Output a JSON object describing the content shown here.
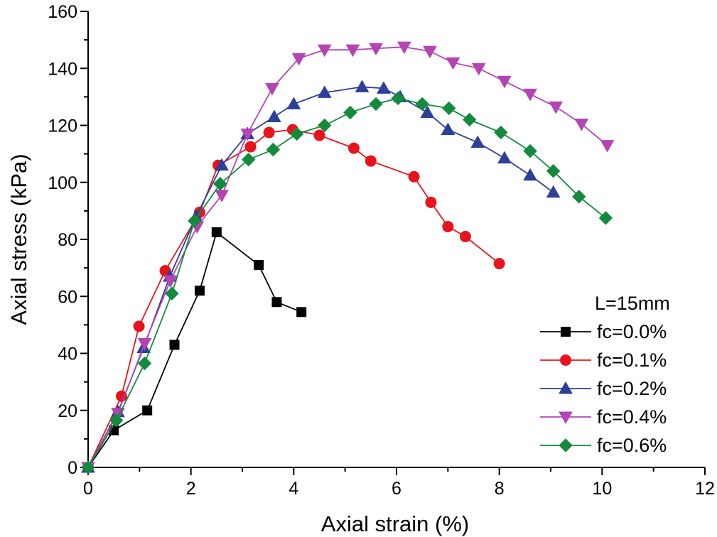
{
  "chart_data": {
    "type": "line",
    "title": "",
    "xlabel": "Axial strain (%)",
    "ylabel": "Axial stress (kPa)",
    "xlim": [
      0,
      12
    ],
    "ylim": [
      0,
      160
    ],
    "xticks": [
      0,
      2,
      4,
      6,
      8,
      10,
      12
    ],
    "yticks": [
      0,
      20,
      40,
      60,
      80,
      100,
      120,
      140,
      160
    ],
    "grid": false,
    "legend_title": "L=15mm",
    "legend_position": "bottom-right",
    "series": [
      {
        "name": "fc=0.0%",
        "color": "#000000",
        "marker": "square",
        "x": [
          0,
          0.5,
          1.15,
          1.68,
          2.17,
          2.5,
          3.32,
          3.67,
          4.15
        ],
        "y": [
          0,
          13,
          20,
          43,
          62,
          82.5,
          71,
          58,
          54.5
        ]
      },
      {
        "name": "fc=0.1%",
        "color": "#e8141c",
        "marker": "circle",
        "x": [
          0,
          0.65,
          0.99,
          1.5,
          2.17,
          2.53,
          3.16,
          3.52,
          3.98,
          4.5,
          5.17,
          5.5,
          6.34,
          6.67,
          7.0,
          7.34,
          8.0
        ],
        "y": [
          0,
          25,
          49.5,
          69,
          89.5,
          106,
          112.5,
          117.5,
          118.5,
          116.5,
          112,
          107.5,
          102,
          93,
          84.5,
          81,
          71.5
        ]
      },
      {
        "name": "fc=0.2%",
        "color": "#2c3f99",
        "marker": "triangle-up",
        "x": [
          0,
          0.58,
          1.08,
          1.59,
          2.1,
          2.6,
          3.1,
          3.62,
          4.0,
          4.6,
          5.33,
          5.75,
          6.07,
          6.6,
          7.0,
          7.58,
          8.1,
          8.6,
          9.05
        ],
        "y": [
          0,
          19.5,
          42,
          67,
          88,
          106,
          117,
          123,
          127.5,
          131.5,
          133.5,
          133,
          130,
          124.5,
          118.5,
          114,
          108.5,
          102.5,
          96.5
        ]
      },
      {
        "name": "fc=0.4%",
        "color": "#b444b4",
        "marker": "triangle-down",
        "x": [
          0,
          0.58,
          1.1,
          1.6,
          2.12,
          2.6,
          3.1,
          3.58,
          4.1,
          4.6,
          5.15,
          5.6,
          6.15,
          6.65,
          7.1,
          7.6,
          8.1,
          8.6,
          9.1,
          9.6,
          10.1
        ],
        "y": [
          0,
          19,
          43.5,
          65.5,
          84.5,
          95.5,
          117,
          133,
          143.5,
          146.5,
          146.5,
          147,
          147.5,
          146,
          142,
          140,
          135.5,
          131,
          126.5,
          120.5,
          113
        ]
      },
      {
        "name": "fc=0.6%",
        "color": "#138a3c",
        "marker": "diamond",
        "x": [
          0,
          0.55,
          1.1,
          1.63,
          2.07,
          2.57,
          3.12,
          3.6,
          4.06,
          4.6,
          5.1,
          5.6,
          6.03,
          6.5,
          7.02,
          7.42,
          8.03,
          8.6,
          9.05,
          9.55,
          10.07
        ],
        "y": [
          0,
          16.5,
          36.5,
          61,
          86.5,
          99.5,
          108,
          111.5,
          117,
          120,
          124.5,
          127.5,
          129.5,
          127.5,
          126,
          122,
          117.5,
          111,
          104,
          95,
          87.5
        ]
      }
    ]
  }
}
